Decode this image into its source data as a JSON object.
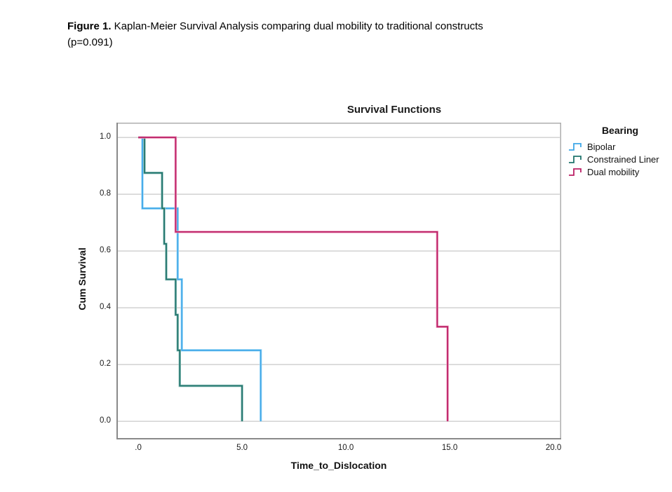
{
  "caption": {
    "prefix": "Figure 1.",
    "text": " Kaplan-Meier Survival Analysis comparing dual mobility to traditional constructs",
    "line2": "(p=0.091)"
  },
  "chart_data": {
    "type": "line",
    "subtype": "kaplan-meier-step",
    "title": "Survival Functions",
    "xlabel": "Time_to_Dislocation",
    "ylabel": "Cum Survival",
    "legend_title": "Bearing",
    "legend_position": "right-top",
    "grid": "horizontal",
    "xlim": [
      -1.05,
      20.37
    ],
    "ylim": [
      -0.064,
      1.052
    ],
    "xticks": [
      0,
      5,
      10,
      15,
      20
    ],
    "xtick_labels": [
      ".0",
      "5.0",
      "10.0",
      "15.0",
      "20.0"
    ],
    "yticks": [
      1.0,
      0.8,
      0.6,
      0.4,
      0.2,
      0.0
    ],
    "ytick_labels": [
      "1.0",
      "0.8",
      "0.6",
      "0.4",
      "0.2",
      "0.0"
    ],
    "frame_color": "#aeaeae",
    "axis_color": "#8a8a8a",
    "gridline_color": "#c9c9c9",
    "series": [
      {
        "name": "Bipolar",
        "color": "#3fa7e8",
        "highlight": "#a5dcf8",
        "points": [
          [
            0,
            1.0
          ],
          [
            0.2,
            1.0
          ],
          [
            0.2,
            0.75
          ],
          [
            1.9,
            0.75
          ],
          [
            1.9,
            0.5
          ],
          [
            2.1,
            0.5
          ],
          [
            2.1,
            0.25
          ],
          [
            5.9,
            0.25
          ],
          [
            5.9,
            0.0
          ]
        ]
      },
      {
        "name": "Constrained Liner",
        "color": "#21756d",
        "highlight": "#8fc0ba",
        "points": [
          [
            0,
            1.0
          ],
          [
            0.3,
            1.0
          ],
          [
            0.3,
            0.875
          ],
          [
            1.15,
            0.875
          ],
          [
            1.15,
            0.75
          ],
          [
            1.25,
            0.75
          ],
          [
            1.25,
            0.625
          ],
          [
            1.35,
            0.625
          ],
          [
            1.35,
            0.5
          ],
          [
            1.8,
            0.5
          ],
          [
            1.8,
            0.375
          ],
          [
            1.9,
            0.375
          ],
          [
            1.9,
            0.25
          ],
          [
            2.0,
            0.25
          ],
          [
            2.0,
            0.125
          ],
          [
            5.0,
            0.125
          ],
          [
            5.0,
            0.0
          ]
        ]
      },
      {
        "name": "Dual mobility",
        "color": "#bc2066",
        "highlight": "#ee9fc0",
        "points": [
          [
            0,
            1.0
          ],
          [
            1.8,
            1.0
          ],
          [
            1.8,
            0.667
          ],
          [
            14.4,
            0.667
          ],
          [
            14.4,
            0.333
          ],
          [
            14.9,
            0.333
          ],
          [
            14.9,
            0.0
          ]
        ]
      }
    ]
  }
}
